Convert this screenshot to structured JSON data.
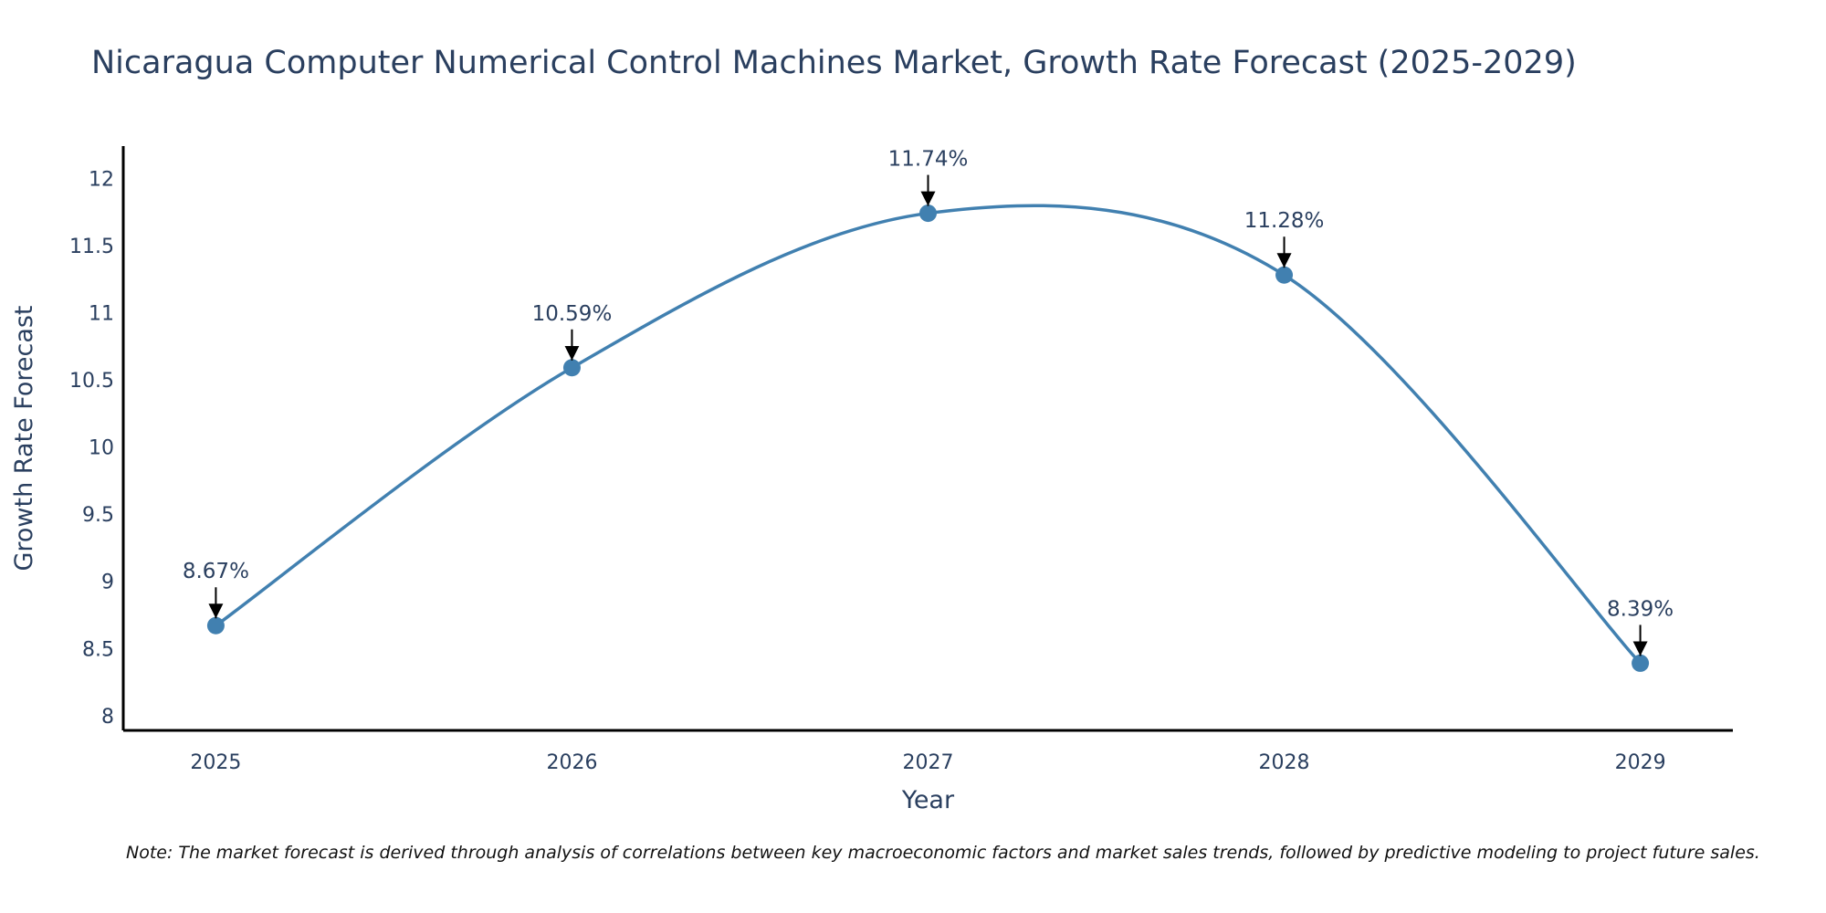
{
  "chart_data": {
    "type": "line",
    "title": "Nicaragua Computer Numerical Control Machines Market, Growth Rate Forecast (2025-2029)",
    "xlabel": "Year",
    "ylabel": "Growth Rate Forecast",
    "categories": [
      "2025",
      "2026",
      "2027",
      "2028",
      "2029"
    ],
    "values": [
      8.67,
      10.59,
      11.74,
      11.28,
      8.39
    ],
    "data_labels": [
      "8.67%",
      "10.59%",
      "11.74%",
      "11.28%",
      "8.39%"
    ],
    "ylim": [
      7.89,
      12.24
    ],
    "xlim": [
      2024.74,
      2029.26
    ],
    "yticks": [
      8,
      8.5,
      9,
      9.5,
      10,
      10.5,
      11,
      11.5,
      12
    ],
    "ytick_labels": [
      "8",
      "8.5",
      "9",
      "9.5",
      "10",
      "10.5",
      "11",
      "11.5",
      "12"
    ],
    "line_shape": "spline",
    "grid": false,
    "series_color": "#4180b0",
    "note": "Note: The market forecast is derived through analysis of correlations between key macroeconomic factors and market sales trends, followed by predictive modeling to project future sales."
  }
}
